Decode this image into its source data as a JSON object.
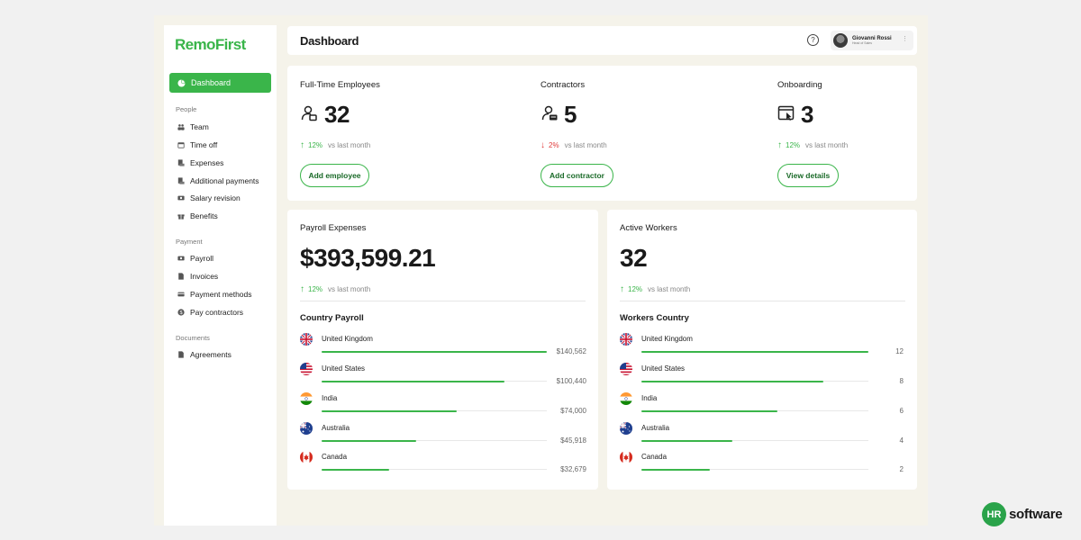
{
  "app": {
    "logo": "RemoFirst"
  },
  "sidebar": {
    "active": {
      "label": "Dashboard"
    },
    "sections": [
      {
        "title": "People",
        "items": [
          {
            "label": "Team",
            "icon": "team-icon"
          },
          {
            "label": "Time off",
            "icon": "calendar-icon"
          },
          {
            "label": "Expenses",
            "icon": "receipt-icon"
          },
          {
            "label": "Additional payments",
            "icon": "receipt-icon"
          },
          {
            "label": "Salary revision",
            "icon": "money-icon"
          },
          {
            "label": "Benefits",
            "icon": "gift-icon"
          }
        ]
      },
      {
        "title": "Payment",
        "items": [
          {
            "label": "Payroll",
            "icon": "money-icon"
          },
          {
            "label": "Invoices",
            "icon": "document-icon"
          },
          {
            "label": "Payment methods",
            "icon": "card-icon"
          },
          {
            "label": "Pay contractors",
            "icon": "dollar-icon"
          }
        ]
      },
      {
        "title": "Documents",
        "items": [
          {
            "label": "Agreements",
            "icon": "document-icon"
          }
        ]
      }
    ]
  },
  "header": {
    "title": "Dashboard",
    "help_icon": "?",
    "user": {
      "name": "Giovanni Rossi",
      "role": "Head of Sales"
    }
  },
  "stats": [
    {
      "title": "Full-Time Employees",
      "value": "32",
      "icon": "employee-icon",
      "trend": "up",
      "arrow": "↑",
      "pct": "12%",
      "vs": "vs last month",
      "button": "Add employee"
    },
    {
      "title": "Contractors",
      "value": "5",
      "icon": "contractor-icon",
      "trend": "down",
      "arrow": "↓",
      "pct": "2%",
      "vs": "vs last month",
      "button": "Add contractor"
    },
    {
      "title": "Onboarding",
      "value": "3",
      "icon": "onboarding-icon",
      "trend": "up",
      "arrow": "↑",
      "pct": "12%",
      "vs": "vs last month",
      "button": "View details"
    }
  ],
  "payroll": {
    "title": "Payroll Expenses",
    "value": "$393,599.21",
    "arrow": "↑",
    "pct": "12%",
    "vs": "vs last month",
    "subtitle": "Country Payroll",
    "rows": [
      {
        "country": "United Kingdom",
        "value": "$140,562",
        "fraction": 1.0,
        "flag": "uk"
      },
      {
        "country": "United States",
        "value": "$100,440",
        "fraction": 0.81,
        "flag": "us"
      },
      {
        "country": "India",
        "value": "$74,000",
        "fraction": 0.6,
        "flag": "in"
      },
      {
        "country": "Australia",
        "value": "$45,918",
        "fraction": 0.42,
        "flag": "au"
      },
      {
        "country": "Canada",
        "value": "$32,679",
        "fraction": 0.3,
        "flag": "ca"
      }
    ]
  },
  "workers": {
    "title": "Active Workers",
    "value": "32",
    "arrow": "↑",
    "pct": "12%",
    "vs": "vs last month",
    "subtitle": "Workers Country",
    "rows": [
      {
        "country": "United Kingdom",
        "value": "12",
        "fraction": 1.0,
        "flag": "uk"
      },
      {
        "country": "United States",
        "value": "8",
        "fraction": 0.8,
        "flag": "us"
      },
      {
        "country": "India",
        "value": "6",
        "fraction": 0.6,
        "flag": "in"
      },
      {
        "country": "Australia",
        "value": "4",
        "fraction": 0.4,
        "flag": "au"
      },
      {
        "country": "Canada",
        "value": "2",
        "fraction": 0.3,
        "flag": "ca"
      }
    ]
  },
  "watermark": {
    "badge": "HR",
    "text": "software"
  },
  "colors": {
    "accent": "#3ab54a",
    "down": "#e03a3a",
    "background": "#f5f3ea"
  }
}
